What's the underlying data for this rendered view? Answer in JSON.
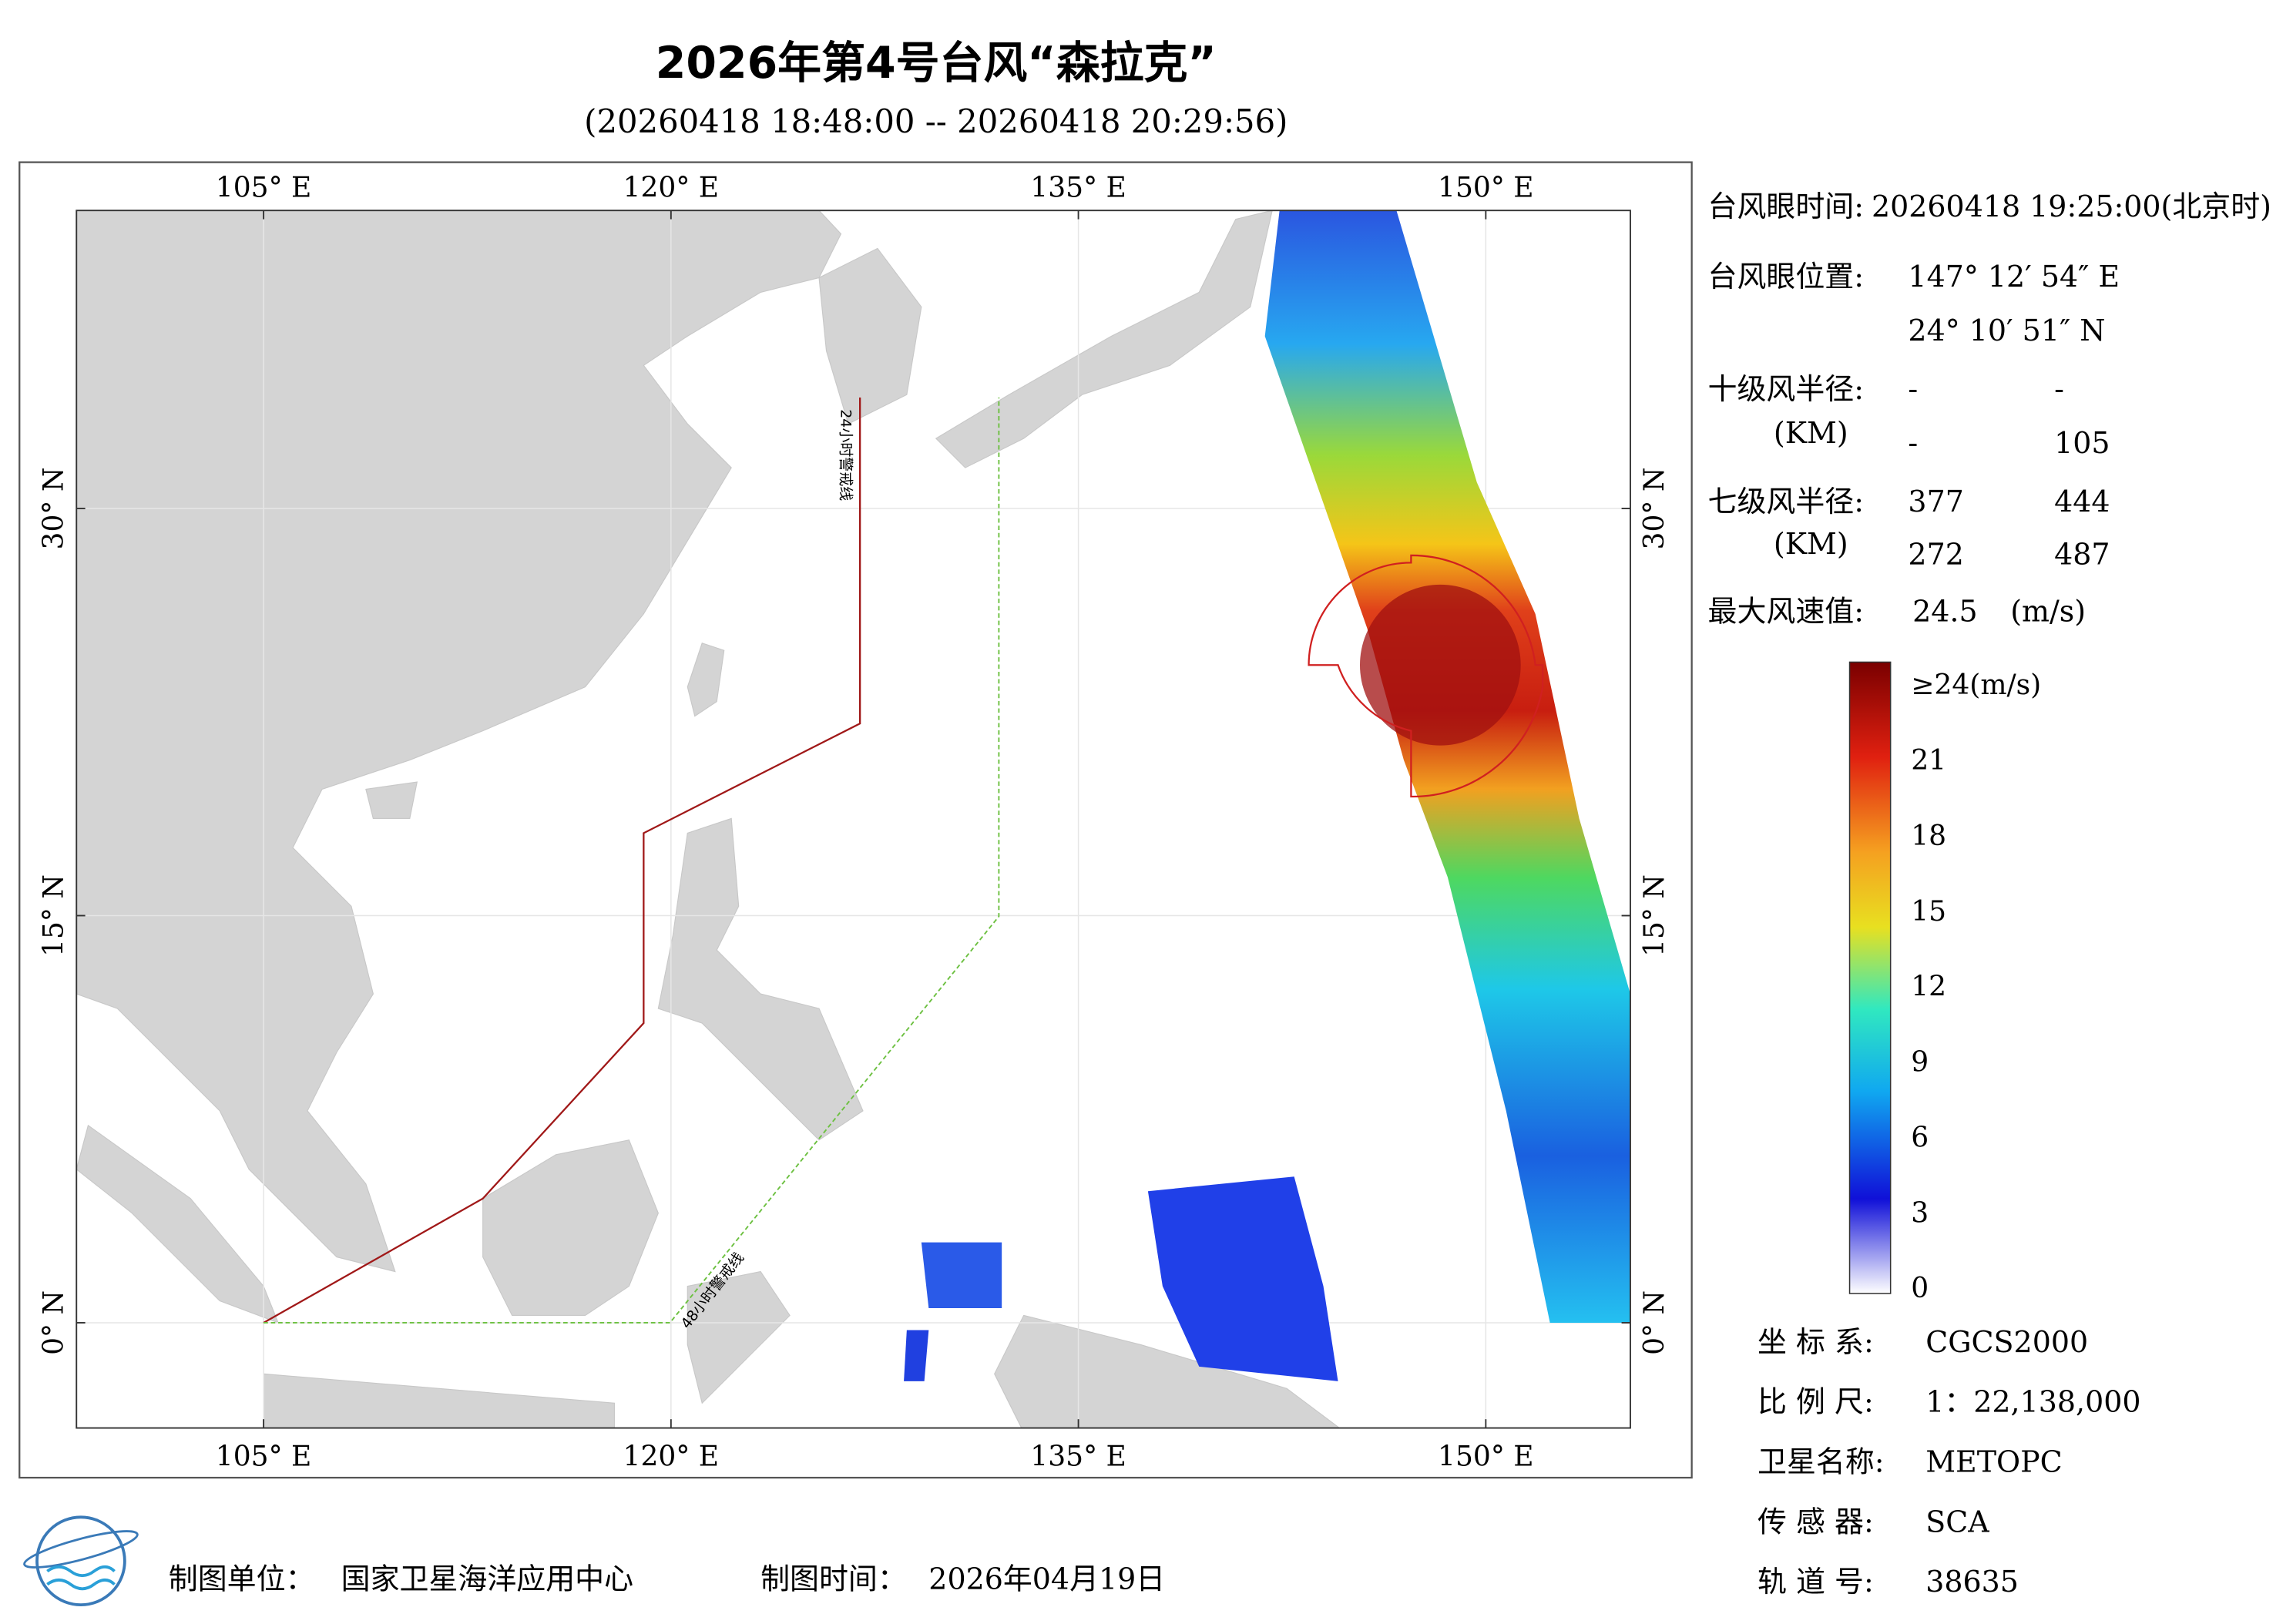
{
  "header": {
    "title": "2026年第4号台风“森拉克”",
    "subtitle": "(20260418 18:48:00 -- 20260418 20:29:56)"
  },
  "map": {
    "lon_ticks": [
      {
        "value": 105,
        "label": "105° E"
      },
      {
        "value": 120,
        "label": "120° E"
      },
      {
        "value": 135,
        "label": "135° E"
      },
      {
        "value": 150,
        "label": "150° E"
      }
    ],
    "lat_ticks": [
      {
        "value": 0,
        "label": "0° N"
      },
      {
        "value": 15,
        "label": "15° N"
      },
      {
        "value": 30,
        "label": "30° N"
      }
    ],
    "warning_24h": "24小时警戒线",
    "warning_48h": "48小时警戒线"
  },
  "info": {
    "eye_time_label": "台风眼时间:",
    "eye_time": "20260418 19:25:00(北京时)",
    "eye_position_label": "台风眼位置:",
    "eye_lon": "147° 12′ 54″ E",
    "eye_lat": "24° 10′ 51″ N",
    "r10_label": "十级风半径:",
    "r10_unit": "(KM)",
    "r10": [
      [
        "-",
        "-"
      ],
      [
        "-",
        105
      ]
    ],
    "r7_label": "七级风半径:",
    "r7_unit": "(KM)",
    "r7": [
      [
        377,
        444
      ],
      [
        272,
        487
      ]
    ],
    "max_wind_label": "最大风速值:",
    "max_wind": 24.5,
    "max_wind_unit": "(m/s)"
  },
  "colorbar": {
    "ticks": [
      {
        "value": 24,
        "label": "≥24(m/s)"
      },
      21,
      18,
      15,
      12,
      9,
      6,
      3,
      0
    ]
  },
  "meta": [
    {
      "label": "坐 标 系:",
      "value": "CGCS2000"
    },
    {
      "label": "比 例 尺:",
      "value": "1：22,138,000"
    },
    {
      "label": "卫星名称:",
      "value": "METOPC"
    },
    {
      "label": "传 感 器:",
      "value": "SCA"
    },
    {
      "label": "轨 道 号:",
      "value": 38635
    }
  ],
  "footer": {
    "unit_label": "制图单位：",
    "unit": "国家卫星海洋应用中心",
    "time_label": "制图时间：",
    "time": "2026年04月19日"
  }
}
